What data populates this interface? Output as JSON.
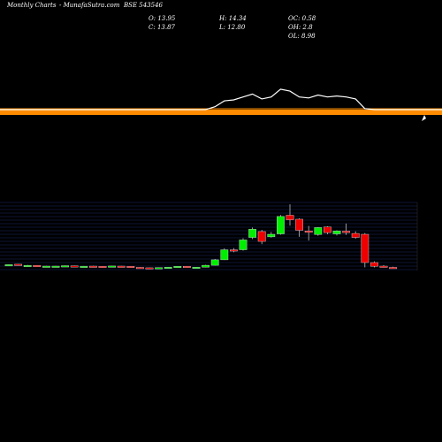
{
  "header": {
    "brand": "Monthly Charts",
    "site": "- MunafaSutra.com",
    "symbol": "BSE 543546",
    "open": "O: 13.95",
    "close": "C: 13.87",
    "high": "H: 14.34",
    "low": "L: 12.80",
    "oc": "OC: 0.58",
    "oh": "OH: 2.8",
    "ol": "OL: 8.98"
  },
  "colors": {
    "background": "#000000",
    "band": "#ff8c00",
    "up": "#00ee00",
    "down": "#ee0000",
    "grid": "#1a2a66",
    "line": "#ffffff"
  },
  "chart_data": {
    "type": "candlestick",
    "candles": [
      {
        "o": 1.1,
        "h": 1.35,
        "l": 1.0,
        "c": 1.3
      },
      {
        "o": 1.5,
        "h": 1.55,
        "l": 0.95,
        "c": 1.0
      },
      {
        "o": 0.9,
        "h": 1.2,
        "l": 0.8,
        "c": 0.95
      },
      {
        "o": 0.95,
        "h": 1.0,
        "l": 0.4,
        "c": 0.5
      },
      {
        "o": 0.6,
        "h": 0.7,
        "l": 0.5,
        "c": 0.6
      },
      {
        "o": 0.5,
        "h": 0.7,
        "l": 0.4,
        "c": 0.6
      },
      {
        "o": 0.55,
        "h": 0.85,
        "l": 0.5,
        "c": 0.8
      },
      {
        "o": 0.75,
        "h": 0.85,
        "l": 0.5,
        "c": 0.55
      },
      {
        "o": 0.55,
        "h": 0.65,
        "l": 0.45,
        "c": 0.55
      },
      {
        "o": 0.6,
        "h": 0.7,
        "l": 0.4,
        "c": 0.45
      },
      {
        "o": 0.5,
        "h": 0.6,
        "l": 0.4,
        "c": 0.45
      },
      {
        "o": 0.45,
        "h": 0.7,
        "l": 0.4,
        "c": 0.65
      },
      {
        "o": 0.6,
        "h": 0.7,
        "l": 0.35,
        "c": 0.4
      },
      {
        "o": 0.5,
        "h": 0.55,
        "l": -0.1,
        "c": 0.0
      },
      {
        "o": 0.0,
        "h": 0.15,
        "l": -0.25,
        "c": -0.2
      },
      {
        "o": -0.2,
        "h": -0.1,
        "l": -0.4,
        "c": -0.3
      },
      {
        "o": -0.3,
        "h": 0.0,
        "l": -0.35,
        "c": -0.1
      },
      {
        "o": -0.1,
        "h": 0.15,
        "l": -0.25,
        "c": 0.1
      },
      {
        "o": 0.1,
        "h": 0.6,
        "l": 0.05,
        "c": 0.5
      },
      {
        "o": 0.5,
        "h": 0.6,
        "l": -0.1,
        "c": 0.0
      },
      {
        "o": 0.0,
        "h": 0.2,
        "l": -0.15,
        "c": 0.1
      },
      {
        "o": 0.1,
        "h": 1.2,
        "l": 0.0,
        "c": 1.0
      },
      {
        "o": 1.0,
        "h": 4.0,
        "l": 0.9,
        "c": 3.6
      },
      {
        "o": 3.6,
        "h": 9.1,
        "l": 3.5,
        "c": 8.4
      },
      {
        "o": 8.4,
        "h": 9.2,
        "l": 7.2,
        "c": 8.3
      },
      {
        "o": 8.4,
        "h": 13.9,
        "l": 8.0,
        "c": 13.1
      },
      {
        "o": 14.3,
        "h": 19.0,
        "l": 13.5,
        "c": 18.2
      },
      {
        "o": 17.1,
        "h": 17.9,
        "l": 11.1,
        "c": 12.4
      },
      {
        "o": 14.6,
        "h": 16.9,
        "l": 14.2,
        "c": 15.8
      },
      {
        "o": 16.0,
        "h": 25.0,
        "l": 15.6,
        "c": 24.3
      },
      {
        "o": 24.9,
        "h": 30.1,
        "l": 19.9,
        "c": 22.7
      },
      {
        "o": 23.0,
        "h": 23.4,
        "l": 14.6,
        "c": 17.7
      },
      {
        "o": 17.4,
        "h": 19.8,
        "l": 12.8,
        "c": 16.7
      },
      {
        "o": 15.7,
        "h": 19.2,
        "l": 15.1,
        "c": 19.0
      },
      {
        "o": 19.3,
        "h": 19.6,
        "l": 15.8,
        "c": 16.6
      },
      {
        "o": 16.0,
        "h": 17.7,
        "l": 15.2,
        "c": 17.4
      },
      {
        "o": 17.3,
        "h": 20.9,
        "l": 15.5,
        "c": 16.6
      },
      {
        "o": 16.2,
        "h": 17.2,
        "l": 13.7,
        "c": 14.3
      },
      {
        "o": 15.8,
        "h": 16.4,
        "l": 0.0,
        "c": 2.3
      },
      {
        "o": 2.3,
        "h": 2.9,
        "l": 0.0,
        "c": 0.5
      },
      {
        "o": 0.6,
        "h": 1.1,
        "l": -0.1,
        "c": 0.0
      },
      {
        "o": 0.0,
        "h": 0.3,
        "l": -0.2,
        "c": -0.1
      }
    ],
    "line": [
      0,
      0,
      0,
      0,
      0,
      0,
      0,
      0,
      0,
      0,
      0,
      0,
      0,
      0,
      0,
      0,
      0,
      0,
      0,
      0,
      0,
      0,
      0.3,
      0.9,
      1.0,
      1.3,
      1.6,
      1.1,
      1.3,
      2.1,
      1.9,
      1.3,
      1.2,
      1.5,
      1.3,
      1.4,
      1.3,
      1.1,
      0.1,
      0,
      0,
      0
    ],
    "ylim": [
      -1.5,
      31
    ],
    "xlabel": "",
    "ylabel": "",
    "grid": true
  }
}
